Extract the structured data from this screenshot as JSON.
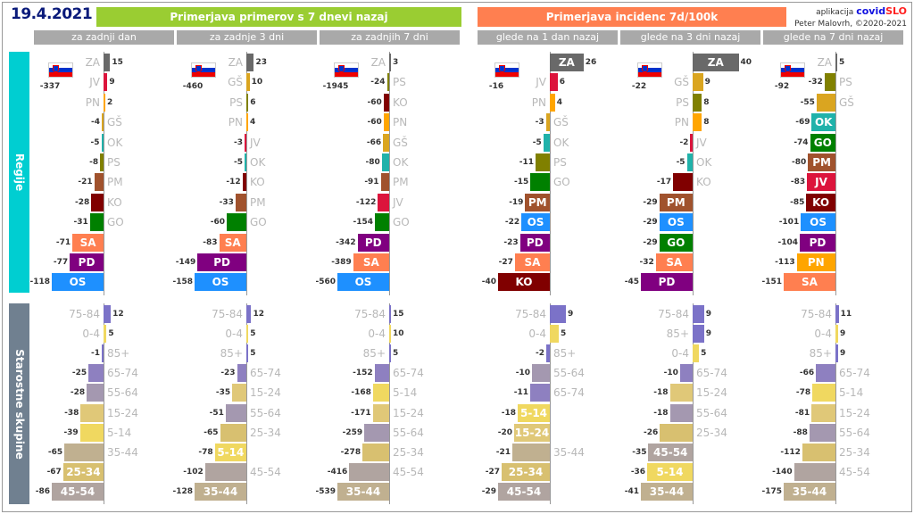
{
  "date": "19.4.2021",
  "header_cases": "Primerjava primerov s 7 dnevi nazaj",
  "header_incidence": "Primerjava incidenc 7d/100k",
  "brand": {
    "prefix": "aplikacija",
    "covid": "covid",
    "slo": "SLO",
    "author": "Peter Malovrh, ©2020-2021"
  },
  "side": {
    "regions": "Regije",
    "ages": "Starostne skupine"
  },
  "colors": {
    "ZA": "#696969",
    "JV": "#dc143c",
    "PN": "#ffa500",
    "GŠ": "#daa520",
    "OK": "#20b2aa",
    "PS": "#808000",
    "PM": "#a0522d",
    "KO": "#800000",
    "GO": "#008000",
    "SA": "#ff7f50",
    "PD": "#800080",
    "OS": "#1e90ff",
    "75-84": "#7b72c8",
    "0-4": "#f0d860",
    "85+": "#7b72c8",
    "65-74": "#8e80c0",
    "55-64": "#a498b0",
    "15-24": "#e0c878",
    "5-14": "#f0d860",
    "35-44": "#c0b090",
    "25-34": "#d8c070",
    "45-54": "#b0a4a0"
  },
  "chart_data": [
    {
      "type": "bar",
      "column": "za zadnji dan",
      "total": "-337",
      "regions": [
        [
          "ZA",
          15
        ],
        [
          "JV",
          9
        ],
        [
          "PN",
          2
        ],
        [
          "GŠ",
          -4
        ],
        [
          "OK",
          -5
        ],
        [
          "PS",
          -8
        ],
        [
          "PM",
          -21
        ],
        [
          "KO",
          -28
        ],
        [
          "GO",
          -31
        ],
        [
          "SA",
          -71,
          1
        ],
        [
          "PD",
          -77,
          1
        ],
        [
          "OS",
          -118,
          1
        ]
      ],
      "ages": [
        [
          "75-84",
          12
        ],
        [
          "0-4",
          5
        ],
        [
          "85+",
          -1
        ],
        [
          "65-74",
          -25
        ],
        [
          "55-64",
          -28
        ],
        [
          "15-24",
          -38
        ],
        [
          "5-14",
          -39
        ],
        [
          "35-44",
          -65
        ],
        [
          "25-34",
          -67,
          1
        ],
        [
          "45-54",
          -86,
          1
        ]
      ]
    },
    {
      "type": "bar",
      "column": "za zadnje 3 dni",
      "total": "-460",
      "regions": [
        [
          "ZA",
          23
        ],
        [
          "GŠ",
          10
        ],
        [
          "PS",
          6
        ],
        [
          "PN",
          4
        ],
        [
          "JV",
          -3
        ],
        [
          "OK",
          -5
        ],
        [
          "KO",
          -12
        ],
        [
          "PM",
          -33
        ],
        [
          "GO",
          -60
        ],
        [
          "SA",
          -83,
          1
        ],
        [
          "PD",
          -149,
          1
        ],
        [
          "OS",
          -158,
          1
        ]
      ],
      "ages": [
        [
          "75-84",
          12
        ],
        [
          "0-4",
          5
        ],
        [
          "85+",
          5
        ],
        [
          "65-74",
          -23
        ],
        [
          "15-24",
          -35
        ],
        [
          "55-64",
          -51
        ],
        [
          "25-34",
          -65
        ],
        [
          "5-14",
          -78,
          1
        ],
        [
          "45-54",
          -102
        ],
        [
          "35-44",
          -128,
          1
        ]
      ]
    },
    {
      "type": "bar",
      "column": "za zadnjih 7 dni",
      "total": "-1945",
      "regions": [
        [
          "ZA",
          3
        ],
        [
          "PS",
          -24
        ],
        [
          "KO",
          -60
        ],
        [
          "PN",
          -60
        ],
        [
          "GŠ",
          -66
        ],
        [
          "OK",
          -80
        ],
        [
          "PM",
          -91
        ],
        [
          "JV",
          -122
        ],
        [
          "GO",
          -154
        ],
        [
          "PD",
          -342,
          1
        ],
        [
          "SA",
          -389,
          1
        ],
        [
          "OS",
          -560,
          1
        ]
      ],
      "ages": [
        [
          "75-84",
          15
        ],
        [
          "0-4",
          10
        ],
        [
          "85+",
          5
        ],
        [
          "65-74",
          -152
        ],
        [
          "5-14",
          -168
        ],
        [
          "15-24",
          -171
        ],
        [
          "55-64",
          -259
        ],
        [
          "25-34",
          -278
        ],
        [
          "45-54",
          -416
        ],
        [
          "35-44",
          -539,
          1
        ]
      ]
    },
    {
      "type": "bar",
      "column": "glede na 1 dan nazaj",
      "total": "-16",
      "regions": [
        [
          "ZA",
          26,
          1
        ],
        [
          "JV",
          6
        ],
        [
          "PN",
          4
        ],
        [
          "GŠ",
          -3
        ],
        [
          "OK",
          -5
        ],
        [
          "PS",
          -11
        ],
        [
          "GO",
          -15
        ],
        [
          "PM",
          -19,
          1
        ],
        [
          "OS",
          -22,
          1
        ],
        [
          "PD",
          -23,
          1
        ],
        [
          "SA",
          -27,
          1
        ],
        [
          "KO",
          -40,
          1
        ]
      ],
      "ages": [
        [
          "75-84",
          9
        ],
        [
          "0-4",
          5
        ],
        [
          "85+",
          -2
        ],
        [
          "55-64",
          -10
        ],
        [
          "65-74",
          -11
        ],
        [
          "5-14",
          -18,
          1
        ],
        [
          "15-24",
          -20,
          1
        ],
        [
          "35-44",
          -21
        ],
        [
          "25-34",
          -27,
          1
        ],
        [
          "45-54",
          -29,
          1
        ]
      ]
    },
    {
      "type": "bar",
      "column": "glede na 3 dni nazaj",
      "total": "-22",
      "regions": [
        [
          "ZA",
          40,
          1
        ],
        [
          "GŠ",
          9
        ],
        [
          "PS",
          8
        ],
        [
          "PN",
          8
        ],
        [
          "JV",
          -2
        ],
        [
          "OK",
          -5
        ],
        [
          "KO",
          -17
        ],
        [
          "PM",
          -29,
          1
        ],
        [
          "OS",
          -29,
          1
        ],
        [
          "GO",
          -29,
          1
        ],
        [
          "SA",
          -32,
          1
        ],
        [
          "PD",
          -45,
          1
        ]
      ],
      "ages": [
        [
          "75-84",
          9
        ],
        [
          "85+",
          9
        ],
        [
          "0-4",
          5
        ],
        [
          "65-74",
          -10
        ],
        [
          "15-24",
          -18
        ],
        [
          "55-64",
          -18
        ],
        [
          "25-34",
          -26
        ],
        [
          "45-54",
          -35,
          1
        ],
        [
          "5-14",
          -36,
          1
        ],
        [
          "35-44",
          -41,
          1
        ]
      ]
    },
    {
      "type": "bar",
      "column": "glede na 7 dni nazaj",
      "total": "-92",
      "regions": [
        [
          "ZA",
          5
        ],
        [
          "PS",
          -32
        ],
        [
          "GŠ",
          -55
        ],
        [
          "OK",
          -69,
          1
        ],
        [
          "GO",
          -74,
          1
        ],
        [
          "PM",
          -80,
          1
        ],
        [
          "JV",
          -83,
          1
        ],
        [
          "KO",
          -85,
          1
        ],
        [
          "OS",
          -101,
          1
        ],
        [
          "PD",
          -104,
          1
        ],
        [
          "PN",
          -113,
          1
        ],
        [
          "SA",
          -151,
          1
        ]
      ],
      "ages": [
        [
          "75-84",
          11
        ],
        [
          "0-4",
          9
        ],
        [
          "85+",
          9
        ],
        [
          "65-74",
          -66
        ],
        [
          "5-14",
          -78
        ],
        [
          "15-24",
          -81
        ],
        [
          "55-64",
          -88
        ],
        [
          "25-34",
          -112
        ],
        [
          "45-54",
          -140
        ],
        [
          "35-44",
          -175,
          1
        ]
      ]
    }
  ]
}
